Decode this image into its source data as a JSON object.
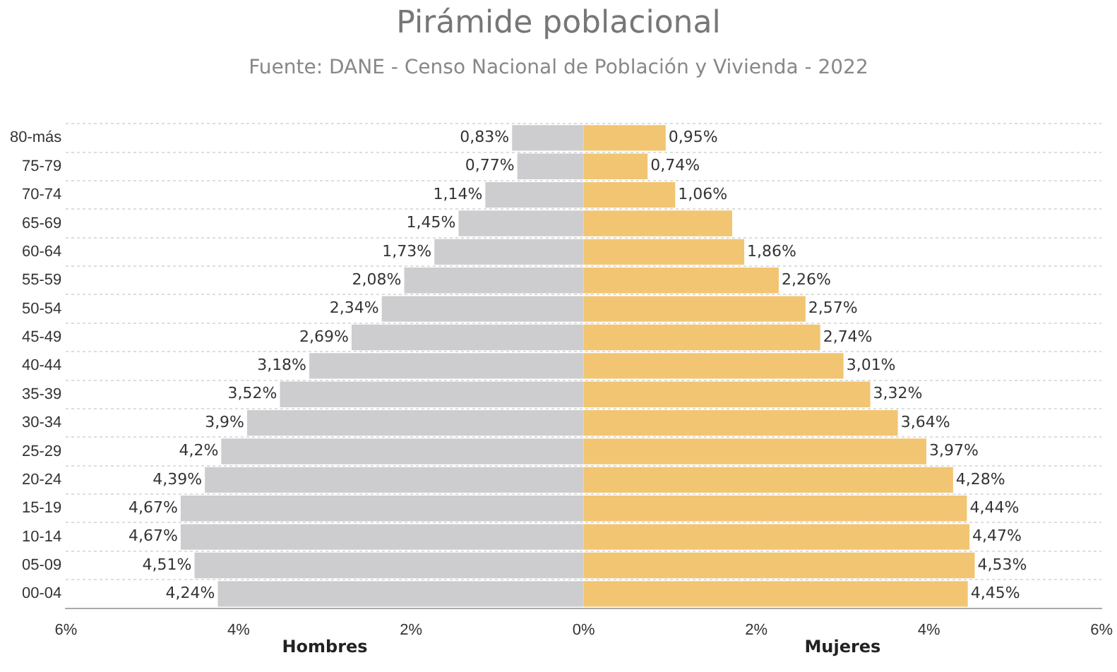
{
  "chart_data": {
    "type": "bar",
    "title": "Pirámide poblacional",
    "subtitle": "Fuente: DANE - Censo Nacional de Población y Vivienda - 2022",
    "orientation": "horizontal",
    "stacked": true,
    "grid": "y",
    "legend": false,
    "categories": [
      "80-más",
      "75-79",
      "70-74",
      "65-69",
      "60-64",
      "55-59",
      "50-54",
      "45-49",
      "40-44",
      "35-39",
      "30-34",
      "25-29",
      "20-24",
      "15-19",
      "10-14",
      "05-09",
      "00-04"
    ],
    "xlim": [
      -6,
      6
    ],
    "xticks": [
      {
        "value": -6,
        "label": "6%"
      },
      {
        "value": -4,
        "label": "4%"
      },
      {
        "value": -2,
        "label": "2%"
      },
      {
        "value": 0,
        "label": "0%"
      },
      {
        "value": 2,
        "label": "2%"
      },
      {
        "value": 4,
        "label": "4%"
      },
      {
        "value": 6,
        "label": "6%"
      }
    ],
    "series": [
      {
        "name": "Hombres",
        "color": "#cdcdcf",
        "values": [
          -0.83,
          -0.77,
          -1.14,
          -1.45,
          -1.73,
          -2.08,
          -2.34,
          -2.69,
          -3.18,
          -3.52,
          -3.9,
          -4.2,
          -4.39,
          -4.67,
          -4.67,
          -4.51,
          -4.24
        ]
      },
      {
        "name": "Mujeres",
        "color": "#f2c572",
        "values": [
          0.95,
          0.74,
          1.06,
          1.72,
          1.86,
          2.26,
          2.57,
          2.74,
          3.01,
          3.32,
          3.64,
          3.97,
          4.28,
          4.44,
          4.47,
          4.53,
          4.45
        ],
        "value_labels": [
          "0,95%",
          "0,74%",
          "1,06%",
          null,
          "1,86%",
          "2,26%",
          "2,57%",
          "2,74%",
          "3,01%",
          "3,32%",
          "3,64%",
          "3,97%",
          "4,28%",
          "4,44%",
          "4,47%",
          "4,53%",
          "4,45%"
        ]
      }
    ],
    "annotations": [
      {
        "text": "0,83%",
        "x": -0.83,
        "y": "80-más"
      },
      {
        "text": "0,77%",
        "x": -0.77,
        "y": "75-79"
      },
      {
        "text": "1,14%",
        "x": -1.14,
        "y": "70-74"
      },
      {
        "text": "1,45%",
        "x": -1.45,
        "y": "65-69"
      },
      {
        "text": "1,73%",
        "x": -1.73,
        "y": "60-64"
      },
      {
        "text": "2,08%",
        "x": -2.08,
        "y": "55-59"
      },
      {
        "text": "2,34%",
        "x": -2.34,
        "y": "50-54"
      },
      {
        "text": "2,69%",
        "x": -2.69,
        "y": "45-49"
      },
      {
        "text": "3,18%",
        "x": -3.18,
        "y": "40-44"
      },
      {
        "text": "3,52%",
        "x": -3.52,
        "y": "35-39"
      },
      {
        "text": "3,9%",
        "x": -3.9,
        "y": "30-34"
      },
      {
        "text": "4,2%",
        "x": -4.2,
        "y": "25-29"
      },
      {
        "text": "4,39%",
        "x": -4.39,
        "y": "20-24"
      },
      {
        "text": "4,67%",
        "x": -4.67,
        "y": "15-19"
      },
      {
        "text": "4,67%",
        "x": -4.67,
        "y": "10-14"
      },
      {
        "text": "4,51%",
        "x": -4.51,
        "y": "05-09"
      },
      {
        "text": "4,24%",
        "x": -4.24,
        "y": "00-04"
      }
    ]
  }
}
